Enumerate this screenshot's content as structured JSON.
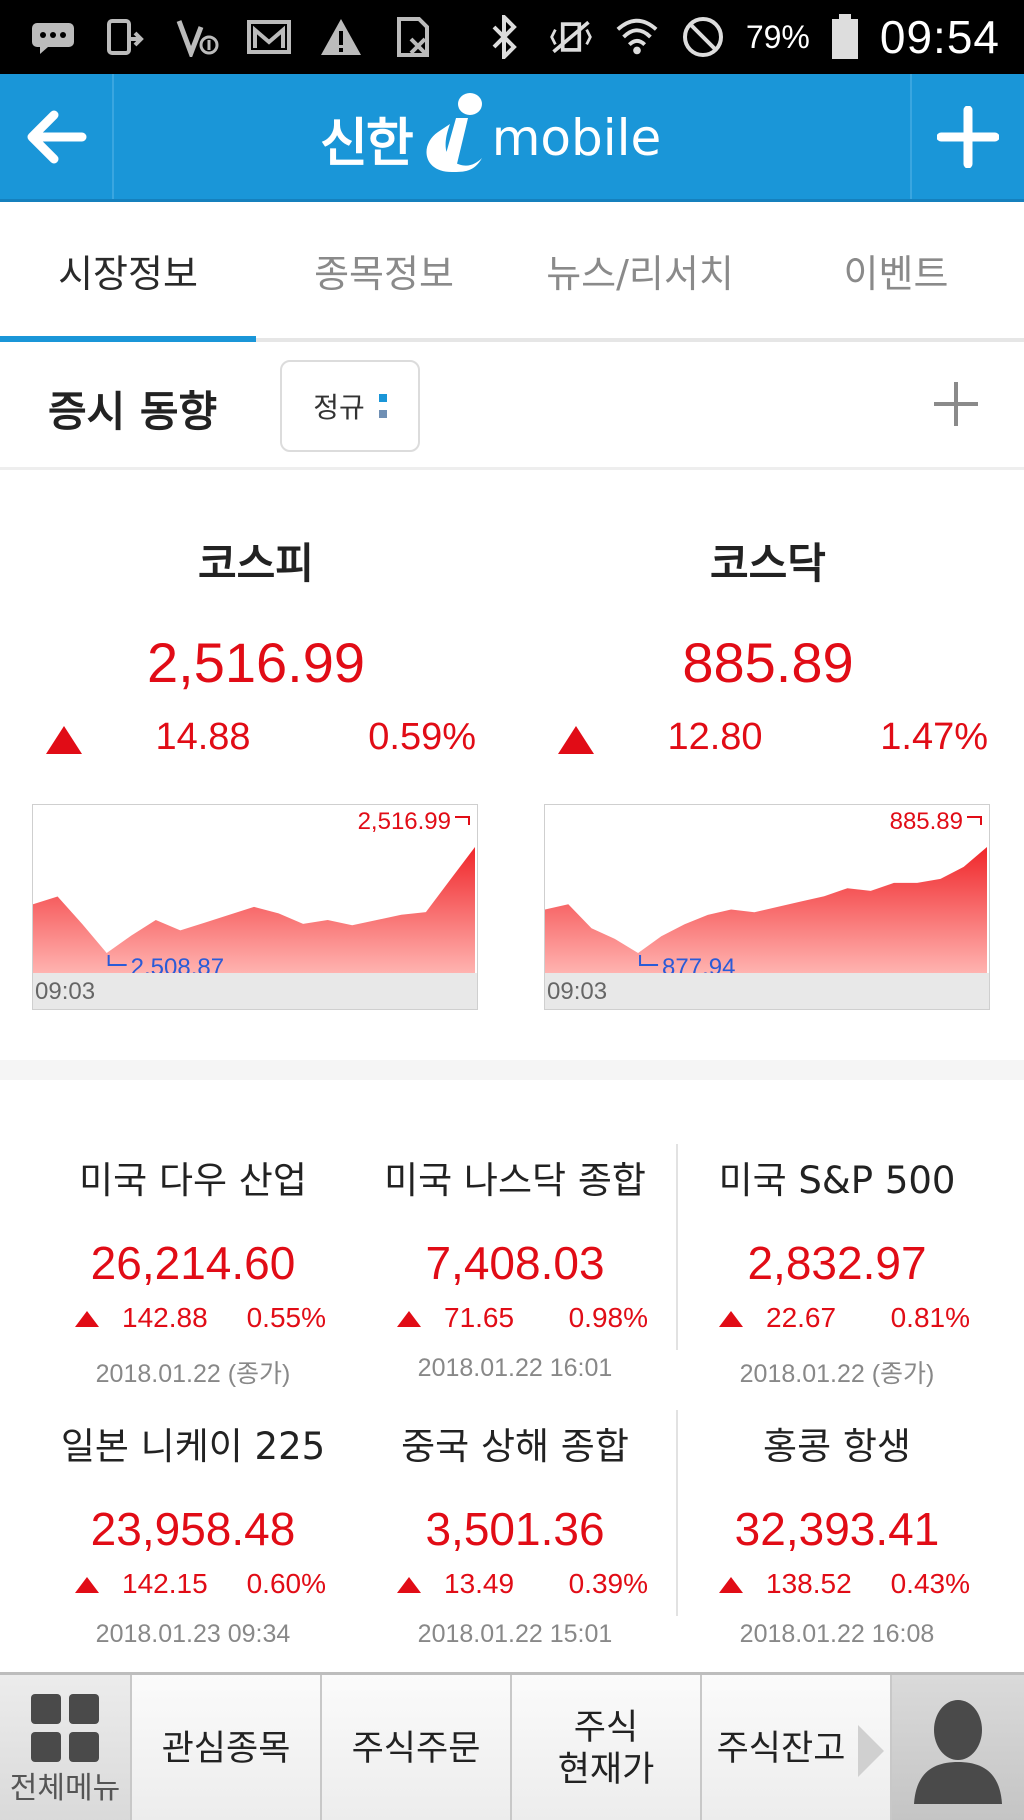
{
  "status_bar": {
    "battery": "79%",
    "time": "09:54"
  },
  "header": {
    "logo_ko": "신한",
    "logo_en": "mobile"
  },
  "tabs": [
    {
      "label": "시장정보",
      "active": true
    },
    {
      "label": "종목정보",
      "active": false
    },
    {
      "label": "뉴스/리서치",
      "active": false
    },
    {
      "label": "이벤트",
      "active": false
    }
  ],
  "section": {
    "title": "증시 동향",
    "session": "정규"
  },
  "indices": [
    {
      "name": "코스피",
      "value": "2,516.99",
      "change": "14.88",
      "percent": "0.59%",
      "chart": {
        "high_label": "2,516.99",
        "low_label": "2,508.87",
        "start_time": "09:03",
        "values": [
          2512.6,
          2513.2,
          2511.1,
          2508.87,
          2510.2,
          2511.4,
          2510.6,
          2511.2,
          2511.8,
          2512.4,
          2511.9,
          2511.1,
          2511.4,
          2511.0,
          2511.4,
          2511.8,
          2512.0,
          2514.5,
          2516.99
        ]
      }
    },
    {
      "name": "코스닥",
      "value": "885.89",
      "change": "12.80",
      "percent": "1.47%",
      "chart": {
        "high_label": "885.89",
        "low_label": "877.94",
        "start_time": "09:03",
        "values": [
          881.2,
          881.6,
          879.8,
          879.0,
          877.94,
          879.2,
          880.1,
          880.8,
          881.2,
          881.0,
          881.4,
          881.8,
          882.2,
          882.8,
          882.6,
          883.2,
          883.2,
          883.5,
          884.4,
          885.89
        ]
      }
    }
  ],
  "world": [
    {
      "name": "미국 다우 산업",
      "value": "26,214.60",
      "change": "142.88",
      "percent": "0.55%",
      "date": "2018.01.22 (종가)"
    },
    {
      "name": "미국 나스닥 종합",
      "value": "7,408.03",
      "change": "71.65",
      "percent": "0.98%",
      "date": "2018.01.22 16:01"
    },
    {
      "name": "미국 S&P 500",
      "value": "2,832.97",
      "change": "22.67",
      "percent": "0.81%",
      "date": "2018.01.22 (종가)"
    },
    {
      "name": "일본 니케이 225",
      "value": "23,958.48",
      "change": "142.15",
      "percent": "0.60%",
      "date": "2018.01.23 09:34"
    },
    {
      "name": "중국 상해 종합",
      "value": "3,501.36",
      "change": "13.49",
      "percent": "0.39%",
      "date": "2018.01.22 15:01"
    },
    {
      "name": "홍콩 항생",
      "value": "32,393.41",
      "change": "138.52",
      "percent": "0.43%",
      "date": "2018.01.22 16:08"
    }
  ],
  "bottom_bar": {
    "menu_label": "전체메뉴",
    "items": [
      "관심종목",
      "주식주문",
      "주식\n현재가",
      "주식잔고"
    ]
  },
  "colors": {
    "brand_blue": "#1a96d8",
    "up_red": "#e10c16",
    "low_blue": "#2a5bd7"
  }
}
